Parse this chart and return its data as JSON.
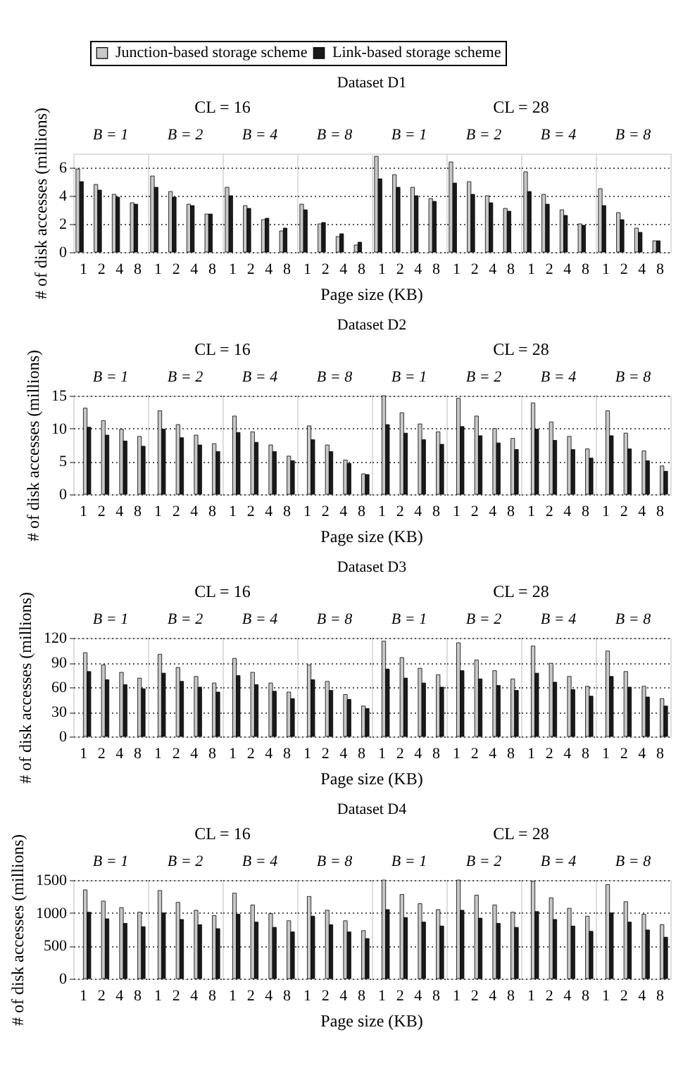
{
  "chart_data": [
    {
      "type": "bar",
      "title": "Dataset D1",
      "xlabel": "Page size (KB)",
      "ylabel": "# of disk accesses (millions)",
      "annotations": [
        "CL = 16",
        "CL = 28",
        "B = 1",
        "B = 2",
        "B = 4",
        "B = 8",
        "B = 1",
        "B = 2",
        "B = 4",
        "B = 8"
      ],
      "categories": [
        "1",
        "2",
        "4",
        "8",
        "1",
        "2",
        "4",
        "8",
        "1",
        "2",
        "4",
        "8",
        "1",
        "2",
        "4",
        "8",
        "1",
        "2",
        "4",
        "8",
        "1",
        "2",
        "4",
        "8",
        "1",
        "2",
        "4",
        "8",
        "1",
        "2",
        "4",
        "8"
      ],
      "series": [
        {
          "name": "Junction-based storage scheme",
          "color": "#c8c8c8",
          "values": [
            5.9,
            4.8,
            4.1,
            3.5,
            5.4,
            4.3,
            3.4,
            2.7,
            4.6,
            3.3,
            2.3,
            1.5,
            3.4,
            2.0,
            1.1,
            0.5,
            6.8,
            5.5,
            4.6,
            3.8,
            6.4,
            5.0,
            4.0,
            3.1,
            5.7,
            4.1,
            3.0,
            2.0,
            4.5,
            2.8,
            1.7,
            0.8
          ]
        },
        {
          "name": "Link-based storage scheme",
          "color": "#1a1a1a",
          "values": [
            5.0,
            4.4,
            3.9,
            3.4,
            4.6,
            3.9,
            3.3,
            2.7,
            4.0,
            3.1,
            2.4,
            1.7,
            3.0,
            2.1,
            1.3,
            0.7,
            5.2,
            4.6,
            4.0,
            3.6,
            4.9,
            4.1,
            3.5,
            2.9,
            4.3,
            3.4,
            2.6,
            1.9,
            3.3,
            2.3,
            1.4,
            0.8
          ]
        }
      ],
      "ylim": [
        0,
        7
      ],
      "yticks": [
        0,
        2,
        4,
        6
      ],
      "grid": "y",
      "legend": "top"
    },
    {
      "type": "bar",
      "title": "Dataset D2",
      "xlabel": "Page size (KB)",
      "ylabel": "# of disk accesses (millions)",
      "annotations": [
        "CL = 16",
        "CL = 28",
        "B = 1",
        "B = 2",
        "B = 4",
        "B = 8",
        "B = 1",
        "B = 2",
        "B = 4",
        "B = 8"
      ],
      "categories": [
        "1",
        "2",
        "4",
        "8",
        "1",
        "2",
        "4",
        "8",
        "1",
        "2",
        "4",
        "8",
        "1",
        "2",
        "4",
        "8",
        "1",
        "2",
        "4",
        "8",
        "1",
        "2",
        "4",
        "8",
        "1",
        "2",
        "4",
        "8",
        "1",
        "2",
        "4",
        "8"
      ],
      "series": [
        {
          "color": "#c8c8c8",
          "values": [
            13.1,
            11.2,
            9.9,
            8.8,
            12.7,
            10.6,
            9.0,
            7.7,
            11.9,
            9.5,
            7.5,
            5.8,
            10.4,
            7.5,
            5.2,
            3.1,
            15.0,
            12.4,
            10.7,
            9.5,
            14.6,
            11.9,
            10.0,
            8.5,
            13.9,
            11.0,
            8.8,
            6.9,
            12.7,
            9.3,
            6.6,
            4.3
          ]
        },
        {
          "color": "#1a1a1a",
          "values": [
            10.2,
            9.0,
            8.1,
            7.3,
            9.9,
            8.6,
            7.5,
            6.5,
            9.4,
            7.9,
            6.5,
            5.1,
            8.3,
            6.5,
            4.7,
            3.0,
            10.6,
            9.3,
            8.3,
            7.6,
            10.3,
            8.9,
            7.8,
            6.8,
            9.9,
            8.2,
            6.8,
            5.5,
            8.9,
            6.9,
            5.1,
            3.5
          ]
        }
      ],
      "ylim": [
        0,
        15
      ],
      "yticks": [
        0,
        5,
        10,
        15
      ],
      "grid": "y"
    },
    {
      "type": "bar",
      "title": "Dataset D3",
      "xlabel": "Page size (KB)",
      "ylabel": "# of disk accesses (millions)",
      "annotations": [
        "CL = 16",
        "CL = 28",
        "B = 1",
        "B = 2",
        "B = 4",
        "B = 8",
        "B = 1",
        "B = 2",
        "B = 4",
        "B = 8"
      ],
      "categories": [
        "1",
        "2",
        "4",
        "8",
        "1",
        "2",
        "4",
        "8",
        "1",
        "2",
        "4",
        "8",
        "1",
        "2",
        "4",
        "8",
        "1",
        "2",
        "4",
        "8",
        "1",
        "2",
        "4",
        "8",
        "1",
        "2",
        "4",
        "8",
        "1",
        "2",
        "4",
        "8"
      ],
      "series": [
        {
          "color": "#c8c8c8",
          "values": [
            102,
            87,
            78,
            71,
            100,
            84,
            73,
            65,
            95,
            78,
            65,
            54,
            87,
            67,
            51,
            37,
            116,
            96,
            83,
            75,
            114,
            93,
            80,
            70,
            110,
            89,
            73,
            61,
            104,
            79,
            61,
            46
          ]
        },
        {
          "color": "#1a1a1a",
          "values": [
            79,
            69,
            63,
            58,
            77,
            67,
            60,
            54,
            74,
            63,
            55,
            46,
            69,
            56,
            45,
            34,
            82,
            71,
            65,
            60,
            80,
            70,
            62,
            56,
            77,
            66,
            57,
            49,
            73,
            60,
            48,
            37
          ]
        }
      ],
      "ylim": [
        0,
        120
      ],
      "yticks": [
        0,
        30,
        60,
        90,
        120
      ],
      "grid": "y"
    },
    {
      "type": "bar",
      "title": "Dataset D4",
      "xlabel": "Page size (KB)",
      "ylabel": "# of disk accesses (millions)",
      "annotations": [
        "CL = 16",
        "CL = 28",
        "B = 1",
        "B = 2",
        "B = 4",
        "B = 8",
        "B = 1",
        "B = 2",
        "B = 4",
        "B = 8"
      ],
      "categories": [
        "1",
        "2",
        "4",
        "8",
        "1",
        "2",
        "4",
        "8",
        "1",
        "2",
        "4",
        "8",
        "1",
        "2",
        "4",
        "8",
        "1",
        "2",
        "4",
        "8",
        "1",
        "2",
        "4",
        "8",
        "1",
        "2",
        "4",
        "8",
        "1",
        "2",
        "4",
        "8"
      ],
      "series": [
        {
          "color": "#c8c8c8",
          "values": [
            1350,
            1180,
            1080,
            1010,
            1340,
            1160,
            1040,
            960,
            1300,
            1120,
            990,
            880,
            1250,
            1040,
            880,
            730,
            1500,
            1280,
            1140,
            1050,
            1500,
            1270,
            1120,
            1010,
            1480,
            1230,
            1070,
            950,
            1430,
            1170,
            980,
            820
          ]
        },
        {
          "color": "#1a1a1a",
          "values": [
            1010,
            910,
            840,
            790,
            1000,
            900,
            820,
            760,
            980,
            860,
            780,
            710,
            950,
            820,
            710,
            610,
            1050,
            930,
            860,
            800,
            1040,
            920,
            840,
            780,
            1020,
            900,
            800,
            720,
            1000,
            860,
            740,
            630
          ]
        }
      ],
      "ylim": [
        0,
        1500
      ],
      "yticks": [
        0,
        500,
        1000,
        1500
      ],
      "grid": "y"
    }
  ]
}
